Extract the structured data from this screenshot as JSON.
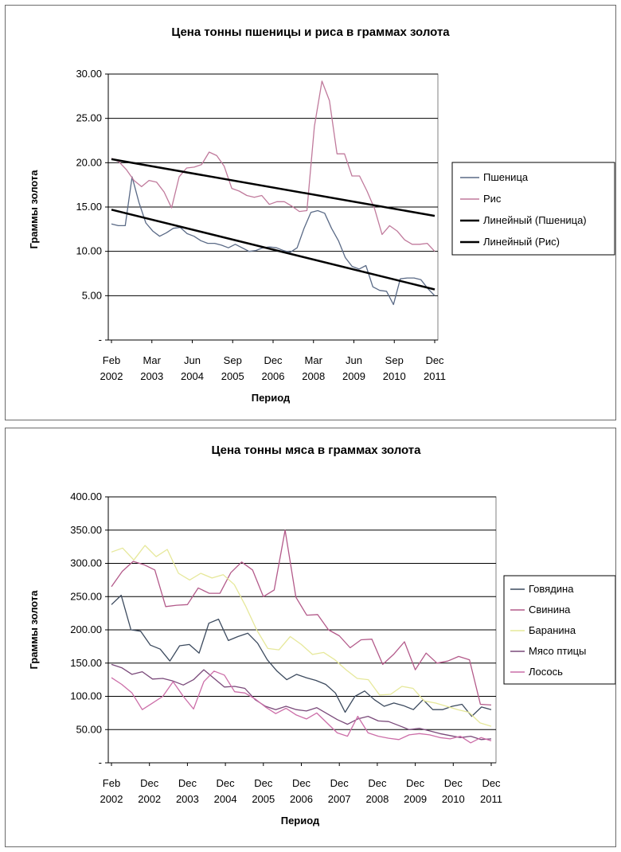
{
  "chart_data": [
    {
      "type": "line",
      "title": "Цена тонны пшеницы и риса в граммах золота",
      "xlabel": "Период",
      "ylabel": "Граммы золота",
      "ylim": [
        0,
        30
      ],
      "yticks": [
        "-",
        "5.00",
        "10.00",
        "15.00",
        "20.00",
        "25.00",
        "30.00"
      ],
      "xticks": [
        {
          "top": "Feb",
          "bottom": "2002"
        },
        {
          "top": "Mar",
          "bottom": "2003"
        },
        {
          "top": "Jun",
          "bottom": "2004"
        },
        {
          "top": "Sep",
          "bottom": "2005"
        },
        {
          "top": "Dec",
          "bottom": "2006"
        },
        {
          "top": "Mar",
          "bottom": "2008"
        },
        {
          "top": "Jun",
          "bottom": "2009"
        },
        {
          "top": "Sep",
          "bottom": "2010"
        },
        {
          "top": "Dec",
          "bottom": "2011"
        }
      ],
      "grid": true,
      "legend_position": "right",
      "series": [
        {
          "name": "Пшеница",
          "color": "#5a6a86",
          "values": [
            13.1,
            12.9,
            12.9,
            18.4,
            15.5,
            13.2,
            12.3,
            11.7,
            12.1,
            12.6,
            12.7,
            12.0,
            11.7,
            11.2,
            10.9,
            10.9,
            10.7,
            10.4,
            10.8,
            10.4,
            10.0,
            10.1,
            10.4,
            10.5,
            10.4,
            10.1,
            9.9,
            10.4,
            12.6,
            14.4,
            14.6,
            14.3,
            12.6,
            11.2,
            9.3,
            8.3,
            8.0,
            8.4,
            6.0,
            5.6,
            5.5,
            4.0,
            6.9,
            7.0,
            7.0,
            6.8,
            5.8,
            5.0
          ]
        },
        {
          "name": "Рис",
          "color": "#c07a9c",
          "values": [
            20.5,
            20.1,
            19.2,
            18.0,
            17.3,
            18.0,
            17.8,
            16.7,
            14.9,
            18.4,
            19.4,
            19.5,
            19.8,
            21.2,
            20.8,
            19.6,
            17.1,
            16.8,
            16.3,
            16.1,
            16.3,
            15.3,
            15.6,
            15.6,
            15.1,
            14.5,
            14.6,
            24.1,
            29.2,
            27.0,
            21.0,
            21.0,
            18.5,
            18.5,
            16.8,
            14.8,
            11.9,
            12.9,
            12.3,
            11.3,
            10.8,
            10.8,
            10.9,
            10.0
          ]
        },
        {
          "name": "Линейный (Пшеница)",
          "color": "#000000",
          "values": [
            14.7,
            5.7
          ]
        },
        {
          "name": "Линейный (Рис)",
          "color": "#000000",
          "values": [
            20.4,
            14.0
          ]
        }
      ]
    },
    {
      "type": "line",
      "title": "Цена тонны мяса в граммах золота",
      "xlabel": "Период",
      "ylabel": "Граммы золота",
      "ylim": [
        0,
        400
      ],
      "yticks": [
        "-",
        "50.00",
        "100.00",
        "150.00",
        "200.00",
        "250.00",
        "300.00",
        "350.00",
        "400.00"
      ],
      "xticks": [
        {
          "top": "Feb",
          "bottom": "2002"
        },
        {
          "top": "Dec",
          "bottom": "2002"
        },
        {
          "top": "Dec",
          "bottom": "2003"
        },
        {
          "top": "Dec",
          "bottom": "2004"
        },
        {
          "top": "Dec",
          "bottom": "2005"
        },
        {
          "top": "Dec",
          "bottom": "2006"
        },
        {
          "top": "Dec",
          "bottom": "2007"
        },
        {
          "top": "Dec",
          "bottom": "2008"
        },
        {
          "top": "Dec",
          "bottom": "2009"
        },
        {
          "top": "Dec",
          "bottom": "2010"
        },
        {
          "top": "Dec",
          "bottom": "2011"
        }
      ],
      "grid": true,
      "legend_position": "right",
      "series": [
        {
          "name": "Говядина",
          "color": "#3c4a5e",
          "values": [
            238,
            252,
            200,
            198,
            177,
            171,
            153,
            176,
            178,
            165,
            210,
            216,
            184,
            190,
            195,
            180,
            155,
            138,
            125,
            133,
            128,
            124,
            118,
            105,
            76,
            100,
            108,
            95,
            85,
            90,
            86,
            80,
            95,
            80,
            80,
            85,
            88,
            70,
            84,
            80
          ]
        },
        {
          "name": "Свинина",
          "color": "#b35a8a",
          "values": [
            265,
            288,
            303,
            298,
            290,
            235,
            237,
            238,
            263,
            255,
            255,
            286,
            302,
            290,
            250,
            260,
            350,
            249,
            222,
            223,
            200,
            191,
            173,
            185,
            186,
            148,
            163,
            182,
            140,
            165,
            150,
            153,
            160,
            155,
            88,
            87
          ]
        },
        {
          "name": "Баранина",
          "color": "#e6e89a",
          "values": [
            317,
            323,
            305,
            327,
            310,
            321,
            285,
            275,
            285,
            278,
            283,
            268,
            236,
            200,
            172,
            170,
            190,
            178,
            163,
            166,
            155,
            140,
            127,
            125,
            102,
            103,
            115,
            112,
            93,
            90,
            85,
            80,
            76,
            60,
            55
          ]
        },
        {
          "name": "Мясо птицы",
          "color": "#7a4a7a",
          "values": [
            148,
            143,
            133,
            137,
            126,
            127,
            123,
            117,
            125,
            140,
            127,
            114,
            115,
            112,
            95,
            85,
            80,
            85,
            80,
            78,
            83,
            74,
            65,
            58,
            66,
            70,
            63,
            62,
            56,
            50,
            52,
            48,
            44,
            41,
            38,
            40,
            35,
            36
          ]
        },
        {
          "name": "Лосось",
          "color": "#cc6ea8",
          "values": [
            128,
            118,
            105,
            80,
            90,
            100,
            122,
            100,
            81,
            122,
            138,
            132,
            107,
            105,
            96,
            84,
            74,
            82,
            72,
            66,
            75,
            60,
            45,
            40,
            70,
            45,
            40,
            37,
            35,
            42,
            44,
            42,
            38,
            36,
            40,
            30,
            38,
            33
          ]
        }
      ]
    }
  ]
}
